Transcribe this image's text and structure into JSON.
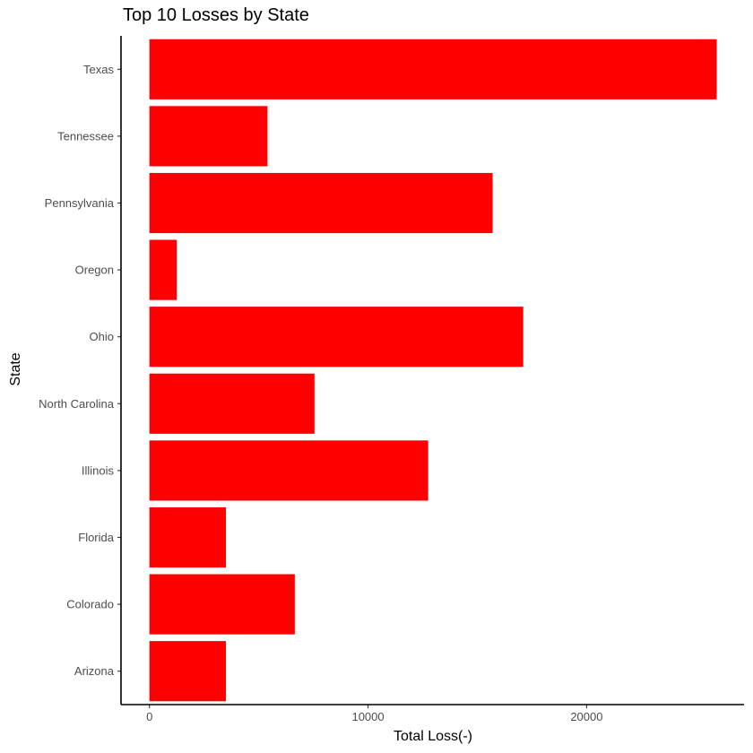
{
  "chart_data": {
    "type": "bar",
    "orientation": "horizontal",
    "title": "Top 10 Losses by State",
    "xlabel": "Total Loss(-)",
    "ylabel": "State",
    "categories": [
      "Texas",
      "Tennessee",
      "Pennsylvania",
      "Oregon",
      "Ohio",
      "North Carolina",
      "Illinois",
      "Florida",
      "Colorado",
      "Arizona"
    ],
    "values": [
      25950,
      5400,
      15700,
      1250,
      17100,
      7550,
      12750,
      3500,
      6650,
      3500
    ],
    "xlim": [
      -1300,
      27200
    ],
    "xticks": [
      0,
      10000,
      20000
    ],
    "xtick_labels": [
      "0",
      "10000",
      "20000"
    ],
    "bar_color": "#ff0000",
    "grid": false,
    "legend": "none"
  }
}
